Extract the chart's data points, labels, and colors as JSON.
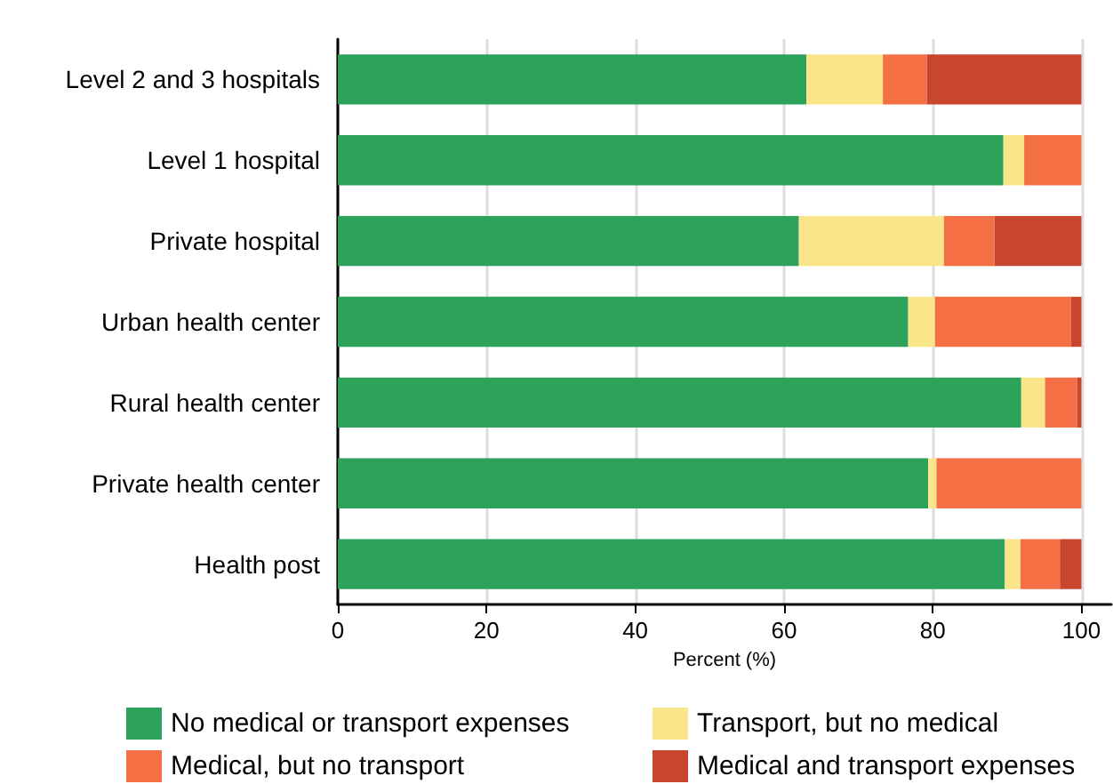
{
  "chart_data": {
    "type": "bar",
    "orientation": "horizontal",
    "stacked": true,
    "categories": [
      "Level 2 and 3 hospitals",
      "Level 1 hospital",
      "Private hospital",
      "Urban health center",
      "Rural health center",
      "Private health center",
      "Health post"
    ],
    "series": [
      {
        "name": "No medical or transport expenses",
        "color": "#2ca25a",
        "values": [
          63.0,
          89.5,
          62.0,
          76.7,
          91.9,
          79.4,
          89.7
        ]
      },
      {
        "name": "Transport, but no medical",
        "color": "#fbe58a",
        "values": [
          10.3,
          2.8,
          19.5,
          3.6,
          3.2,
          1.1,
          2.1
        ]
      },
      {
        "name": "Medical, but no transport",
        "color": "#f46f43",
        "values": [
          5.9,
          7.7,
          6.8,
          18.3,
          4.3,
          19.5,
          5.3
        ]
      },
      {
        "name": "Medical and transport expenses",
        "color": "#c8452e",
        "values": [
          20.8,
          0,
          11.7,
          1.4,
          0.6,
          0,
          2.9
        ]
      }
    ],
    "xlabel": "Percent (%)",
    "xlim": [
      0,
      104
    ],
    "xticks": [
      0,
      20,
      40,
      60,
      80,
      100
    ],
    "grid": "x",
    "legend": "bottom"
  }
}
